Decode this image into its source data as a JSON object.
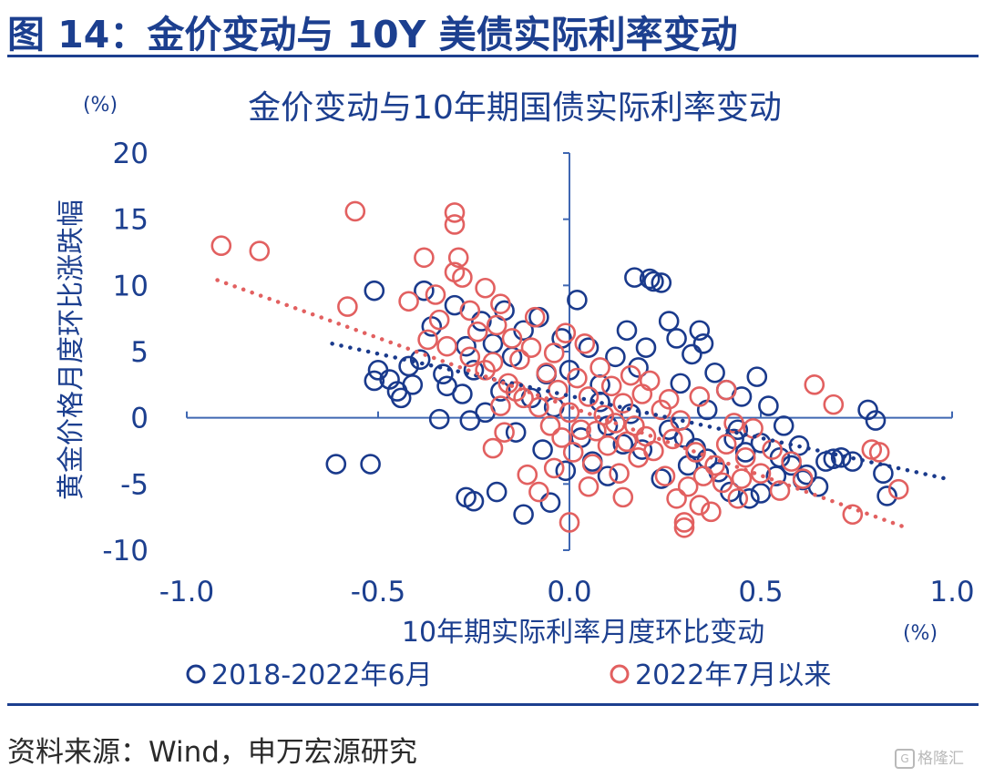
{
  "figure_title": "图 14：金价变动与 10Y 美债实际利率变动",
  "source_note": "资料来源：Wind，申万宏源研究",
  "watermark": "格隆汇",
  "chart_data": {
    "type": "scatter",
    "title": "金价变动与10年期国债实际利率变动",
    "xlabel": "10年期实际利率月度环比变动",
    "ylabel": "黄金价格月度环比涨跌幅",
    "x_unit": "(%)",
    "y_unit": "(%)",
    "xlim": [
      -1.0,
      1.0
    ],
    "ylim": [
      -10,
      20
    ],
    "xticks": [
      "-1.0",
      "-0.5",
      "0.0",
      "0.5",
      "1.0"
    ],
    "yticks": [
      "20",
      "15",
      "10",
      "5",
      "0",
      "-5",
      "-10"
    ],
    "xtick_values": [
      -1.0,
      -0.5,
      0.0,
      0.5,
      1.0
    ],
    "ytick_values": [
      20,
      15,
      10,
      5,
      0,
      -5,
      -10
    ],
    "legend_position": "bottom",
    "series": [
      {
        "name": "2018-2022年6月",
        "color": "#1a3a8c",
        "marker": "open-circle",
        "trendline": {
          "style": "dotted",
          "from": [
            -0.62,
            5.6
          ],
          "to": [
            1.0,
            -4.7
          ]
        },
        "points": [
          [
            -0.61,
            -3.5
          ],
          [
            -0.52,
            -3.5
          ],
          [
            -0.27,
            -6.0
          ],
          [
            -0.25,
            -6.3
          ],
          [
            -0.19,
            -5.6
          ],
          [
            -0.12,
            -7.3
          ],
          [
            -0.05,
            -6.4
          ],
          [
            -0.51,
            9.6
          ],
          [
            -0.51,
            2.8
          ],
          [
            -0.5,
            3.6
          ],
          [
            -0.45,
            2.0
          ],
          [
            -0.44,
            1.5
          ],
          [
            -0.42,
            3.9
          ],
          [
            -0.41,
            2.5
          ],
          [
            -0.39,
            4.4
          ],
          [
            -0.38,
            9.6
          ],
          [
            -0.36,
            6.9
          ],
          [
            -0.34,
            -0.1
          ],
          [
            -0.33,
            3.3
          ],
          [
            -0.32,
            2.4
          ],
          [
            -0.3,
            8.5
          ],
          [
            -0.28,
            1.8
          ],
          [
            -0.27,
            5.4
          ],
          [
            -0.25,
            3.6
          ],
          [
            -0.23,
            7.3
          ],
          [
            -0.22,
            0.4
          ],
          [
            -0.2,
            5.6
          ],
          [
            -0.18,
            2.0
          ],
          [
            -0.17,
            8.1
          ],
          [
            -0.15,
            4.6
          ],
          [
            -0.12,
            6.6
          ],
          [
            -0.1,
            1.5
          ],
          [
            -0.08,
            7.6
          ],
          [
            -0.06,
            3.3
          ],
          [
            -0.04,
            0.8
          ],
          [
            -0.02,
            6.0
          ],
          [
            0.0,
            3.6
          ],
          [
            0.02,
            8.9
          ],
          [
            0.03,
            -1.5
          ],
          [
            0.05,
            5.3
          ],
          [
            0.06,
            -3.3
          ],
          [
            0.08,
            2.5
          ],
          [
            0.1,
            -0.6
          ],
          [
            0.12,
            4.6
          ],
          [
            0.14,
            -2.0
          ],
          [
            0.15,
            6.6
          ],
          [
            0.17,
            10.6
          ],
          [
            0.18,
            3.8
          ],
          [
            0.2,
            5.3
          ],
          [
            0.21,
            10.5
          ],
          [
            0.22,
            10.3
          ],
          [
            0.24,
            10.2
          ],
          [
            0.26,
            7.3
          ],
          [
            0.28,
            6.0
          ],
          [
            0.29,
            2.6
          ],
          [
            0.3,
            -1.5
          ],
          [
            0.31,
            -3.6
          ],
          [
            0.32,
            4.8
          ],
          [
            0.34,
            6.6
          ],
          [
            0.35,
            5.6
          ],
          [
            0.36,
            -3.1
          ],
          [
            0.38,
            3.4
          ],
          [
            0.39,
            -4.1
          ],
          [
            0.41,
            2.1
          ],
          [
            0.42,
            -5.6
          ],
          [
            0.44,
            -0.9
          ],
          [
            0.45,
            1.6
          ],
          [
            0.47,
            -6.1
          ],
          [
            0.49,
            3.1
          ],
          [
            0.5,
            -1.9
          ],
          [
            0.52,
            0.9
          ],
          [
            0.54,
            -4.4
          ],
          [
            0.56,
            -0.6
          ],
          [
            0.58,
            -3.6
          ],
          [
            0.6,
            -2.1
          ],
          [
            0.62,
            -4.3
          ],
          [
            0.65,
            -5.2
          ],
          [
            0.67,
            -3.3
          ],
          [
            0.69,
            -3.1
          ],
          [
            0.71,
            -3.0
          ],
          [
            0.74,
            -3.3
          ],
          [
            0.78,
            0.6
          ],
          [
            0.8,
            -0.2
          ],
          [
            0.82,
            -4.2
          ],
          [
            0.83,
            -5.9
          ],
          [
            0.26,
            -0.9
          ],
          [
            0.33,
            -2.3
          ],
          [
            0.46,
            -2.6
          ],
          [
            0.19,
            -2.4
          ],
          [
            0.1,
            -4.4
          ],
          [
            -0.07,
            -2.4
          ],
          [
            -0.14,
            -1.1
          ],
          [
            0.08,
            1.2
          ],
          [
            0.16,
            0.3
          ],
          [
            0.24,
            -4.6
          ],
          [
            0.36,
            0.6
          ],
          [
            0.43,
            -1.6
          ],
          [
            -0.26,
            -0.2
          ],
          [
            -0.47,
            2.9
          ],
          [
            0.55,
            -3.0
          ],
          [
            0.5,
            -5.7
          ],
          [
            0.61,
            -4.7
          ],
          [
            -0.01,
            -4.0
          ]
        ]
      },
      {
        "name": "2022年7月以来",
        "color": "#e26060",
        "marker": "open-circle",
        "trendline": {
          "style": "dotted",
          "from": [
            -0.92,
            10.4
          ],
          "to": [
            0.88,
            -8.3
          ]
        },
        "points": [
          [
            -0.91,
            13.0
          ],
          [
            -0.81,
            12.6
          ],
          [
            -0.56,
            15.6
          ],
          [
            -0.58,
            8.4
          ],
          [
            -0.3,
            15.5
          ],
          [
            -0.3,
            14.6
          ],
          [
            -0.29,
            12.1
          ],
          [
            -0.38,
            12.1
          ],
          [
            -0.3,
            11.0
          ],
          [
            -0.42,
            8.8
          ],
          [
            -0.37,
            5.9
          ],
          [
            -0.35,
            9.3
          ],
          [
            -0.34,
            7.4
          ],
          [
            -0.32,
            5.4
          ],
          [
            -0.28,
            10.6
          ],
          [
            -0.26,
            8.1
          ],
          [
            -0.24,
            6.5
          ],
          [
            -0.22,
            9.8
          ],
          [
            -0.2,
            4.2
          ],
          [
            -0.19,
            7.0
          ],
          [
            -0.18,
            8.6
          ],
          [
            -0.16,
            2.6
          ],
          [
            -0.15,
            6.0
          ],
          [
            -0.13,
            4.4
          ],
          [
            -0.12,
            1.5
          ],
          [
            -0.1,
            5.3
          ],
          [
            -0.09,
            7.6
          ],
          [
            -0.08,
            0.8
          ],
          [
            -0.06,
            3.4
          ],
          [
            -0.05,
            -0.6
          ],
          [
            -0.04,
            4.9
          ],
          [
            -0.03,
            2.1
          ],
          [
            -0.02,
            -1.5
          ],
          [
            -0.01,
            6.4
          ],
          [
            0.0,
            0.4
          ],
          [
            0.01,
            -2.6
          ],
          [
            0.02,
            3.0
          ],
          [
            0.03,
            -0.9
          ],
          [
            0.04,
            5.6
          ],
          [
            0.05,
            1.6
          ],
          [
            0.06,
            -3.5
          ],
          [
            0.07,
            -1.0
          ],
          [
            0.08,
            3.8
          ],
          [
            0.09,
            0.2
          ],
          [
            0.1,
            -2.1
          ],
          [
            0.11,
            2.4
          ],
          [
            0.12,
            -0.4
          ],
          [
            0.13,
            -4.2
          ],
          [
            0.14,
            1.1
          ],
          [
            0.15,
            -1.8
          ],
          [
            0.16,
            3.2
          ],
          [
            0.17,
            -0.6
          ],
          [
            0.18,
            -3.0
          ],
          [
            0.19,
            1.8
          ],
          [
            0.2,
            -1.4
          ],
          [
            0.21,
            2.8
          ],
          [
            0.22,
            -2.5
          ],
          [
            0.24,
            0.6
          ],
          [
            0.25,
            -4.4
          ],
          [
            0.26,
            1.4
          ],
          [
            0.27,
            -1.6
          ],
          [
            0.28,
            -6.1
          ],
          [
            0.29,
            -0.2
          ],
          [
            0.3,
            -7.9
          ],
          [
            0.31,
            -5.2
          ],
          [
            0.33,
            -2.6
          ],
          [
            0.34,
            -6.6
          ],
          [
            0.35,
            -4.4
          ],
          [
            0.37,
            -7.1
          ],
          [
            0.38,
            -3.6
          ],
          [
            0.4,
            -4.9
          ],
          [
            0.41,
            -2.0
          ],
          [
            0.43,
            -0.4
          ],
          [
            0.44,
            -6.1
          ],
          [
            0.46,
            -3.0
          ],
          [
            0.48,
            -0.8
          ],
          [
            0.5,
            -4.2
          ],
          [
            0.53,
            -2.4
          ],
          [
            0.55,
            -5.5
          ],
          [
            0.58,
            -3.3
          ],
          [
            0.61,
            -4.6
          ],
          [
            0.64,
            2.5
          ],
          [
            0.69,
            1.0
          ],
          [
            0.74,
            -7.3
          ],
          [
            0.79,
            -2.4
          ],
          [
            0.81,
            -2.6
          ],
          [
            0.86,
            -5.4
          ],
          [
            0.34,
            1.6
          ],
          [
            0.41,
            2.1
          ],
          [
            0.45,
            -4.6
          ],
          [
            0.3,
            -8.3
          ],
          [
            -0.11,
            -4.3
          ],
          [
            -0.2,
            -2.3
          ],
          [
            -0.08,
            -5.6
          ],
          [
            0.0,
            -7.9
          ],
          [
            -0.04,
            -3.8
          ],
          [
            0.05,
            -5.2
          ],
          [
            0.14,
            -6.0
          ],
          [
            -0.22,
            3.6
          ],
          [
            -0.18,
            0.9
          ],
          [
            -0.26,
            4.6
          ],
          [
            -0.14,
            2.0
          ],
          [
            -0.17,
            -1.1
          ]
        ]
      }
    ]
  }
}
